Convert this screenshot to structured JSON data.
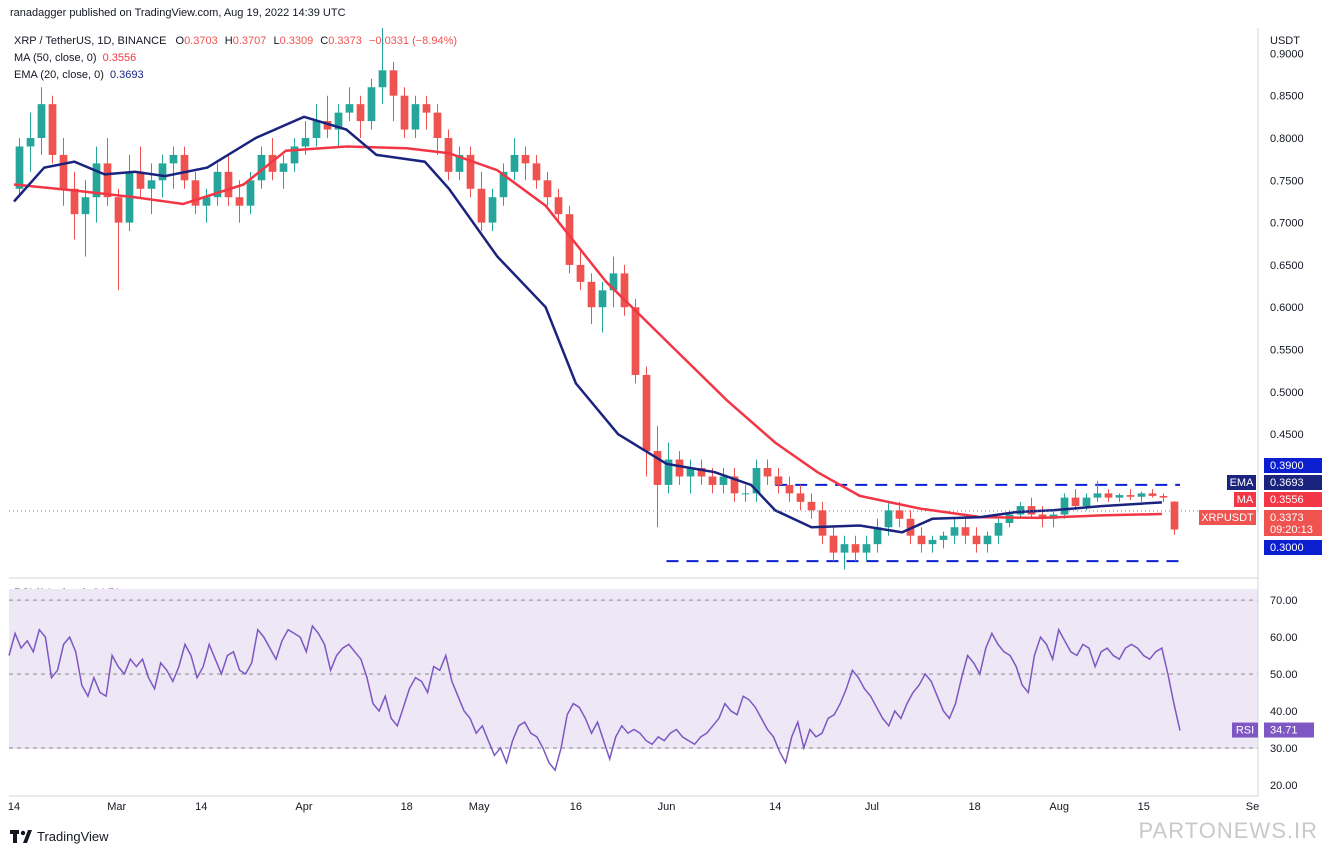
{
  "header": {
    "published": "ranadagger published on TradingView.com, Aug 19, 2022 14:39 UTC",
    "symbol": "XRP / TetherUS, 1D, BINANCE",
    "ohlc": {
      "o_label": "O",
      "o": "0.3703",
      "h_label": "H",
      "h": "0.3707",
      "l_label": "L",
      "l": "0.3309",
      "c_label": "C",
      "c": "0.3373",
      "change": "−0.0331 (−8.94%)"
    },
    "ma_label": "MA (50, close, 0)",
    "ma_value": "0.3556",
    "ema_label": "EMA (20, close, 0)",
    "ema_value": "0.3693",
    "rsi_label": "RSI (14, close)",
    "rsi_value": "34.71"
  },
  "footer": {
    "brand": "TradingView",
    "watermark": "PARTONEWS.IR"
  },
  "colors": {
    "up": "#26a69a",
    "down": "#ef5350",
    "ma": "#f23645",
    "ema": "#1a237e",
    "rsi": "#7e57c2",
    "rsi_band": "#ede7f6",
    "support": "#0b1fd1"
  },
  "chart_data": [
    {
      "type": "candlestick",
      "title": "XRP / TetherUS, 1D, BINANCE",
      "ylabel": "USDT",
      "ylim": [
        0.28,
        0.93
      ],
      "y_ticks": [
        "0.9000",
        "0.8500",
        "0.8000",
        "0.7500",
        "0.7000",
        "0.6500",
        "0.6000",
        "0.5500",
        "0.5000",
        "0.4500"
      ],
      "x_ticks": [
        "14",
        "Mar",
        "14",
        "Apr",
        "18",
        "May",
        "16",
        "Jun",
        "14",
        "Jul",
        "18",
        "Aug",
        "15",
        "Se"
      ],
      "x_tick_days": [
        0,
        17,
        31,
        48,
        65,
        77,
        93,
        108,
        126,
        142,
        159,
        173,
        187,
        205
      ],
      "series": [
        {
          "name": "MA (50, close, 0)",
          "points": [
            [
              0,
              0.745
            ],
            [
              10,
              0.738
            ],
            [
              20,
              0.73
            ],
            [
              28,
              0.722
            ],
            [
              38,
              0.745
            ],
            [
              45,
              0.785
            ],
            [
              55,
              0.79
            ],
            [
              65,
              0.788
            ],
            [
              72,
              0.782
            ],
            [
              80,
              0.762
            ],
            [
              88,
              0.72
            ],
            [
              98,
              0.63
            ],
            [
              108,
              0.56
            ],
            [
              118,
              0.49
            ],
            [
              126,
              0.44
            ],
            [
              133,
              0.405
            ],
            [
              140,
              0.377
            ],
            [
              150,
              0.362
            ],
            [
              160,
              0.352
            ],
            [
              170,
              0.351
            ],
            [
              180,
              0.354
            ],
            [
              190,
              0.3556
            ]
          ]
        },
        {
          "name": "EMA (20, close, 0)",
          "points": [
            [
              0,
              0.725
            ],
            [
              5,
              0.765
            ],
            [
              10,
              0.772
            ],
            [
              15,
              0.757
            ],
            [
              20,
              0.76
            ],
            [
              25,
              0.755
            ],
            [
              32,
              0.765
            ],
            [
              40,
              0.8
            ],
            [
              48,
              0.825
            ],
            [
              55,
              0.81
            ],
            [
              60,
              0.78
            ],
            [
              68,
              0.772
            ],
            [
              72,
              0.74
            ],
            [
              80,
              0.66
            ],
            [
              88,
              0.6
            ],
            [
              93,
              0.51
            ],
            [
              100,
              0.45
            ],
            [
              108,
              0.415
            ],
            [
              116,
              0.405
            ],
            [
              122,
              0.39
            ],
            [
              126,
              0.36
            ],
            [
              132,
              0.34
            ],
            [
              140,
              0.342
            ],
            [
              147,
              0.334
            ],
            [
              152,
              0.35
            ],
            [
              160,
              0.352
            ],
            [
              166,
              0.358
            ],
            [
              172,
              0.36
            ],
            [
              180,
              0.365
            ],
            [
              190,
              0.3693
            ]
          ]
        }
      ],
      "levels": [
        {
          "label": "0.3900",
          "value": 0.39,
          "from_day": 126,
          "to_day": 193
        },
        {
          "label": "0.3000",
          "value": 0.3,
          "from_day": 108,
          "to_day": 193
        }
      ],
      "candles_ohlc": [
        [
          0.74,
          0.8,
          0.73,
          0.79
        ],
        [
          0.79,
          0.83,
          0.76,
          0.8
        ],
        [
          0.8,
          0.86,
          0.78,
          0.84
        ],
        [
          0.84,
          0.85,
          0.77,
          0.78
        ],
        [
          0.78,
          0.8,
          0.72,
          0.74
        ],
        [
          0.74,
          0.76,
          0.68,
          0.71
        ],
        [
          0.71,
          0.75,
          0.66,
          0.73
        ],
        [
          0.73,
          0.79,
          0.7,
          0.77
        ],
        [
          0.77,
          0.8,
          0.72,
          0.73
        ],
        [
          0.73,
          0.74,
          0.62,
          0.7
        ],
        [
          0.7,
          0.78,
          0.69,
          0.76
        ],
        [
          0.76,
          0.79,
          0.73,
          0.74
        ],
        [
          0.74,
          0.77,
          0.71,
          0.75
        ],
        [
          0.75,
          0.78,
          0.73,
          0.77
        ],
        [
          0.77,
          0.79,
          0.74,
          0.78
        ],
        [
          0.78,
          0.79,
          0.74,
          0.75
        ],
        [
          0.75,
          0.76,
          0.71,
          0.72
        ],
        [
          0.72,
          0.74,
          0.7,
          0.73
        ],
        [
          0.73,
          0.77,
          0.72,
          0.76
        ],
        [
          0.76,
          0.78,
          0.72,
          0.73
        ],
        [
          0.73,
          0.75,
          0.7,
          0.72
        ],
        [
          0.72,
          0.76,
          0.71,
          0.75
        ],
        [
          0.75,
          0.79,
          0.74,
          0.78
        ],
        [
          0.78,
          0.8,
          0.75,
          0.76
        ],
        [
          0.76,
          0.78,
          0.74,
          0.77
        ],
        [
          0.77,
          0.8,
          0.76,
          0.79
        ],
        [
          0.79,
          0.82,
          0.78,
          0.8
        ],
        [
          0.8,
          0.84,
          0.79,
          0.82
        ],
        [
          0.82,
          0.85,
          0.8,
          0.81
        ],
        [
          0.81,
          0.84,
          0.79,
          0.83
        ],
        [
          0.83,
          0.86,
          0.82,
          0.84
        ],
        [
          0.84,
          0.85,
          0.8,
          0.82
        ],
        [
          0.82,
          0.87,
          0.81,
          0.86
        ],
        [
          0.86,
          0.93,
          0.84,
          0.88
        ],
        [
          0.88,
          0.89,
          0.82,
          0.85
        ],
        [
          0.85,
          0.86,
          0.8,
          0.81
        ],
        [
          0.81,
          0.85,
          0.8,
          0.84
        ],
        [
          0.84,
          0.85,
          0.81,
          0.83
        ],
        [
          0.83,
          0.84,
          0.78,
          0.8
        ],
        [
          0.8,
          0.81,
          0.75,
          0.76
        ],
        [
          0.76,
          0.79,
          0.75,
          0.78
        ],
        [
          0.78,
          0.79,
          0.73,
          0.74
        ],
        [
          0.74,
          0.76,
          0.69,
          0.7
        ],
        [
          0.7,
          0.74,
          0.69,
          0.73
        ],
        [
          0.73,
          0.77,
          0.72,
          0.76
        ],
        [
          0.76,
          0.8,
          0.75,
          0.78
        ],
        [
          0.78,
          0.79,
          0.75,
          0.77
        ],
        [
          0.77,
          0.78,
          0.74,
          0.75
        ],
        [
          0.75,
          0.76,
          0.72,
          0.73
        ],
        [
          0.73,
          0.74,
          0.7,
          0.71
        ],
        [
          0.71,
          0.72,
          0.64,
          0.65
        ],
        [
          0.65,
          0.67,
          0.62,
          0.63
        ],
        [
          0.63,
          0.64,
          0.58,
          0.6
        ],
        [
          0.6,
          0.63,
          0.57,
          0.62
        ],
        [
          0.62,
          0.66,
          0.6,
          0.64
        ],
        [
          0.64,
          0.65,
          0.59,
          0.6
        ],
        [
          0.6,
          0.61,
          0.51,
          0.52
        ],
        [
          0.52,
          0.53,
          0.4,
          0.43
        ],
        [
          0.43,
          0.46,
          0.34,
          0.39
        ],
        [
          0.39,
          0.44,
          0.38,
          0.42
        ],
        [
          0.42,
          0.43,
          0.39,
          0.4
        ],
        [
          0.4,
          0.42,
          0.38,
          0.41
        ],
        [
          0.41,
          0.42,
          0.39,
          0.4
        ],
        [
          0.4,
          0.41,
          0.38,
          0.39
        ],
        [
          0.39,
          0.41,
          0.38,
          0.4
        ],
        [
          0.4,
          0.41,
          0.37,
          0.38
        ],
        [
          0.38,
          0.39,
          0.37,
          0.38
        ],
        [
          0.38,
          0.42,
          0.37,
          0.41
        ],
        [
          0.41,
          0.42,
          0.39,
          0.4
        ],
        [
          0.4,
          0.41,
          0.38,
          0.39
        ],
        [
          0.39,
          0.4,
          0.37,
          0.38
        ],
        [
          0.38,
          0.39,
          0.36,
          0.37
        ],
        [
          0.37,
          0.38,
          0.35,
          0.36
        ],
        [
          0.36,
          0.37,
          0.32,
          0.33
        ],
        [
          0.33,
          0.34,
          0.3,
          0.31
        ],
        [
          0.31,
          0.33,
          0.29,
          0.32
        ],
        [
          0.32,
          0.33,
          0.3,
          0.31
        ],
        [
          0.31,
          0.33,
          0.3,
          0.32
        ],
        [
          0.32,
          0.35,
          0.31,
          0.34
        ],
        [
          0.34,
          0.37,
          0.33,
          0.36
        ],
        [
          0.36,
          0.37,
          0.34,
          0.35
        ],
        [
          0.35,
          0.36,
          0.32,
          0.33
        ],
        [
          0.33,
          0.34,
          0.31,
          0.32
        ],
        [
          0.32,
          0.33,
          0.31,
          0.325
        ],
        [
          0.325,
          0.335,
          0.315,
          0.33
        ],
        [
          0.33,
          0.35,
          0.32,
          0.34
        ],
        [
          0.34,
          0.35,
          0.32,
          0.33
        ],
        [
          0.33,
          0.34,
          0.31,
          0.32
        ],
        [
          0.32,
          0.335,
          0.31,
          0.33
        ],
        [
          0.33,
          0.35,
          0.32,
          0.345
        ],
        [
          0.345,
          0.36,
          0.34,
          0.355
        ],
        [
          0.355,
          0.37,
          0.35,
          0.365
        ],
        [
          0.365,
          0.375,
          0.35,
          0.355
        ],
        [
          0.355,
          0.365,
          0.34,
          0.35
        ],
        [
          0.35,
          0.36,
          0.34,
          0.355
        ],
        [
          0.355,
          0.38,
          0.35,
          0.375
        ],
        [
          0.375,
          0.385,
          0.36,
          0.365
        ],
        [
          0.365,
          0.38,
          0.36,
          0.375
        ],
        [
          0.375,
          0.395,
          0.37,
          0.38
        ],
        [
          0.38,
          0.385,
          0.37,
          0.375
        ],
        [
          0.375,
          0.38,
          0.37,
          0.378
        ],
        [
          0.378,
          0.385,
          0.372,
          0.376
        ],
        [
          0.376,
          0.382,
          0.37,
          0.38
        ],
        [
          0.38,
          0.385,
          0.375,
          0.377
        ],
        [
          0.377,
          0.38,
          0.37,
          0.375
        ],
        [
          0.3703,
          0.3707,
          0.3309,
          0.3373
        ]
      ]
    },
    {
      "type": "line",
      "title": "RSI (14, close)",
      "ylim": [
        17,
        73
      ],
      "y_ticks": [
        "70.00",
        "60.00",
        "50.00",
        "40.00",
        "30.00",
        "20.00"
      ],
      "bands": {
        "upper": 70,
        "middle": 50,
        "lower": 30
      },
      "series": [
        {
          "name": "RSI (14, close)",
          "values": [
            55,
            61,
            57,
            59,
            56,
            62,
            60,
            49,
            51,
            58,
            60,
            56,
            47,
            44,
            49,
            45,
            44,
            55,
            52,
            50,
            54,
            52,
            54,
            49,
            46,
            53,
            51,
            48,
            52,
            58,
            55,
            49,
            52,
            58,
            54,
            50,
            55,
            56,
            51,
            50,
            53,
            62,
            60,
            57,
            54,
            59,
            62,
            61,
            60,
            56,
            63,
            61,
            58,
            51,
            55,
            57,
            58,
            56,
            54,
            49,
            42,
            40,
            44,
            38,
            36,
            41,
            46,
            49,
            48,
            45,
            52,
            51,
            55,
            48,
            44,
            40,
            38,
            34,
            36,
            32,
            28,
            30,
            26,
            32,
            36,
            37,
            34,
            33,
            30,
            26,
            24,
            30,
            39,
            42,
            41,
            38,
            34,
            37,
            32,
            27,
            33,
            36,
            34,
            35,
            34,
            32,
            31,
            33,
            32,
            34,
            35,
            33,
            32,
            31,
            33,
            34,
            36,
            38,
            42,
            40,
            39,
            44,
            43,
            41,
            38,
            35,
            33,
            29,
            26,
            33,
            37,
            30,
            35,
            33,
            34,
            38,
            39,
            42,
            46,
            51,
            49,
            46,
            44,
            41,
            38,
            36,
            40,
            38,
            42,
            45,
            47,
            50,
            48,
            44,
            40,
            38,
            42,
            49,
            55,
            53,
            50,
            57,
            61,
            58,
            56,
            55,
            52,
            47,
            45,
            55,
            60,
            58,
            54,
            62,
            59,
            56,
            55,
            58,
            57,
            52,
            56,
            57,
            55,
            54,
            57,
            58,
            57,
            55,
            54,
            56,
            57,
            50,
            42,
            34.71
          ]
        }
      ]
    }
  ],
  "price_axis": {
    "unit": "USDT",
    "badges": [
      {
        "label": "0.3900",
        "bg": "#0b1fd1"
      },
      {
        "name": "EMA",
        "label": "0.3693",
        "bg": "#1a237e"
      },
      {
        "name": "MA",
        "label": "0.3556",
        "bg": "#f23645"
      },
      {
        "name": "XRPUSDT",
        "label": "0.3373",
        "sub": "09:20:13",
        "bg": "#ef5350"
      },
      {
        "label": "0.3000",
        "bg": "#0b1fd1"
      }
    ]
  },
  "rsi_axis": {
    "badge_name": "RSI",
    "badge_value": "34.71"
  }
}
